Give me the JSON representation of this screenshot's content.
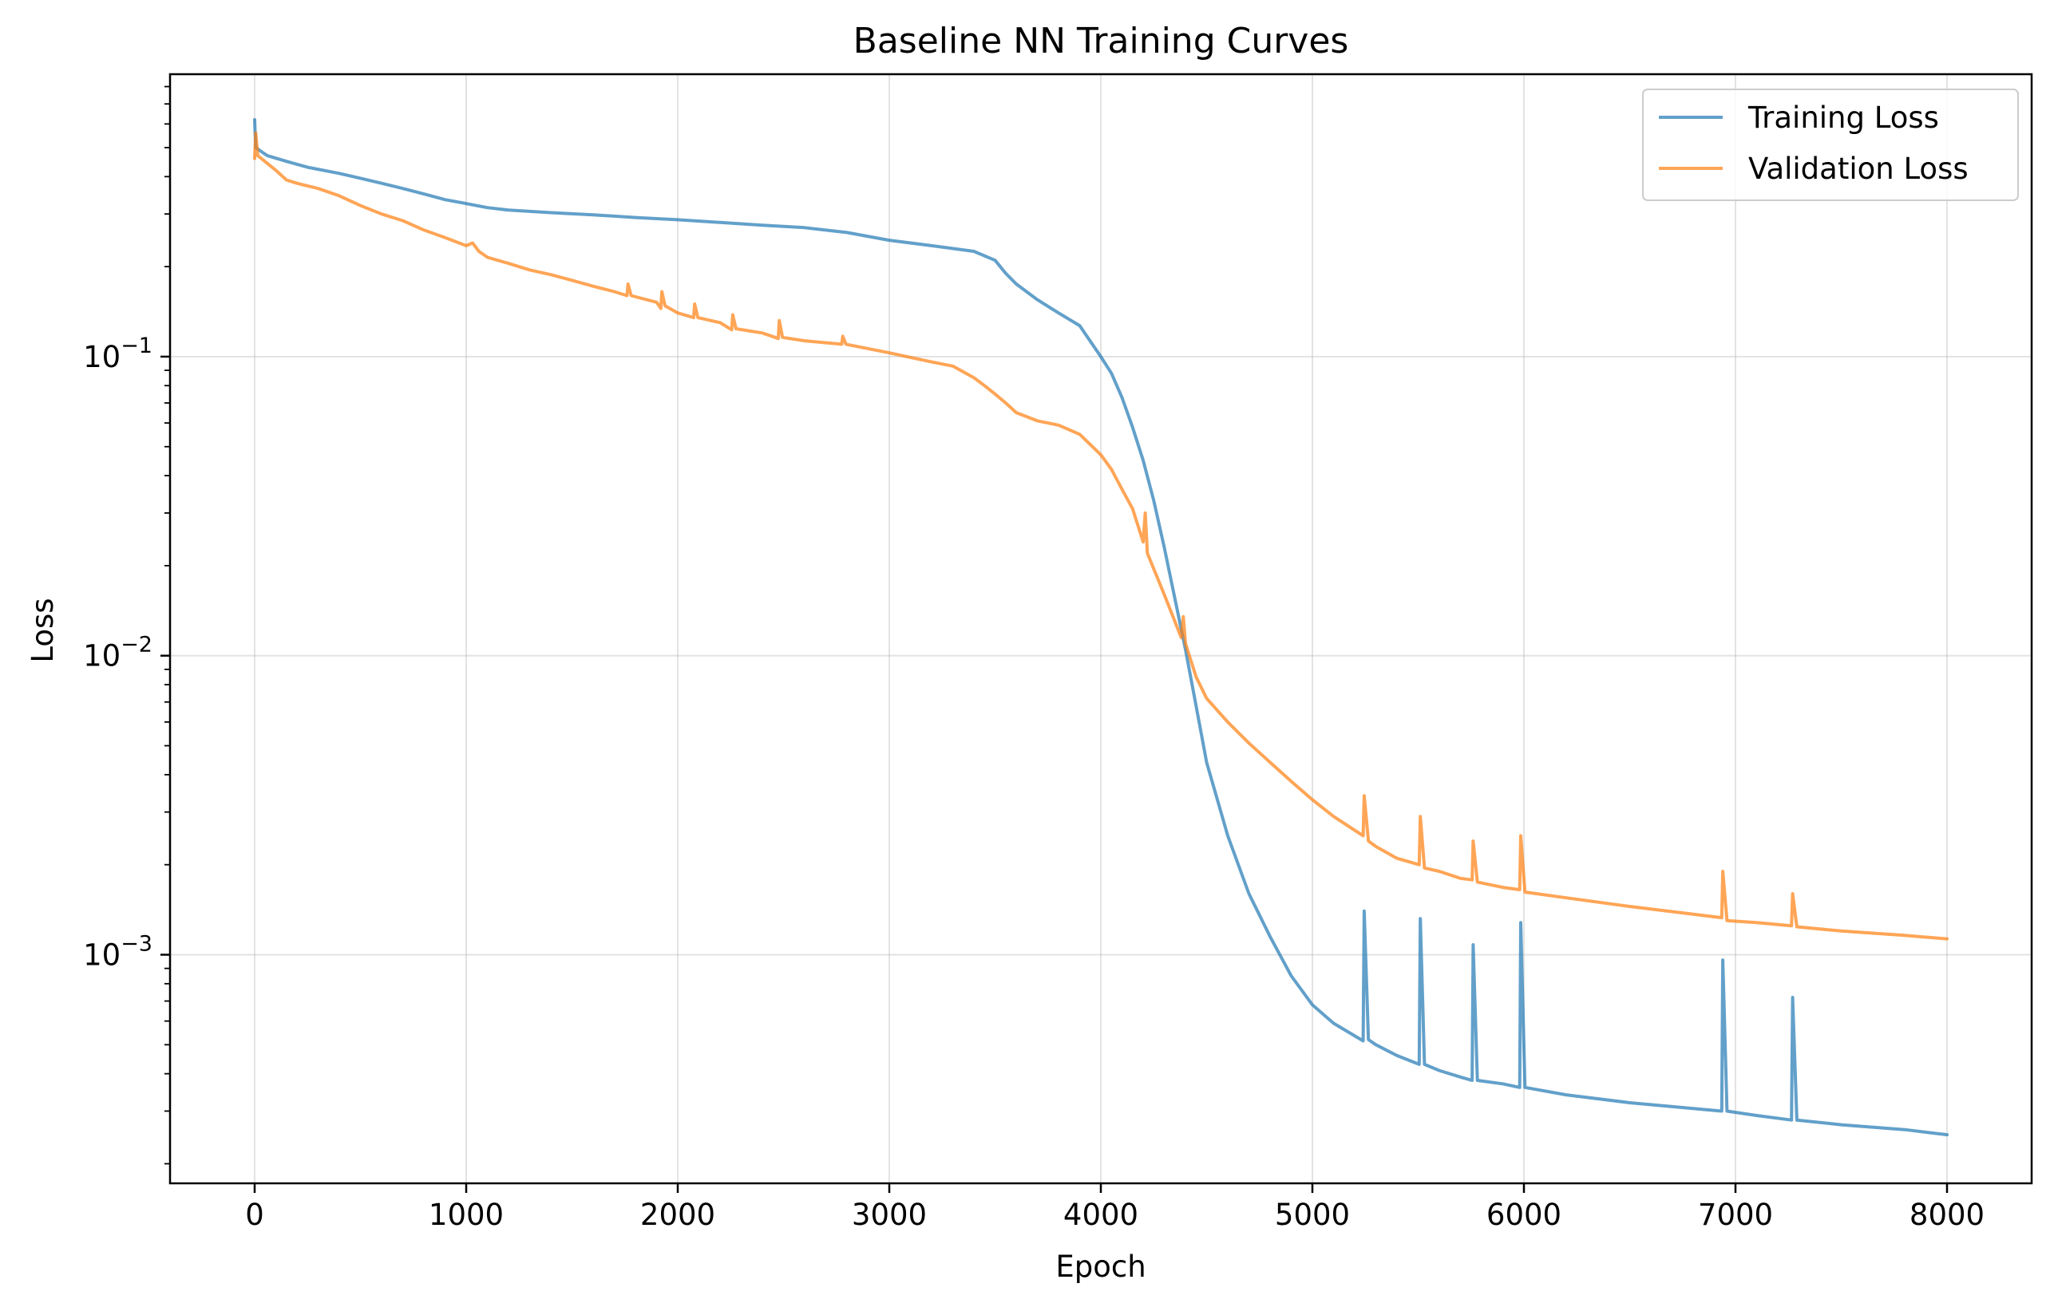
{
  "chart_data": {
    "type": "line",
    "title": "Baseline NN Training Curves",
    "xlabel": "Epoch",
    "ylabel": "Loss",
    "yscale": "log",
    "xlim": [
      -400,
      8400
    ],
    "ylim": [
      0.000172,
      0.88
    ],
    "xticks": [
      0,
      1000,
      2000,
      3000,
      4000,
      5000,
      6000,
      7000,
      8000
    ],
    "xtick_labels": [
      "0",
      "1000",
      "2000",
      "3000",
      "4000",
      "5000",
      "6000",
      "7000",
      "8000"
    ],
    "yticks": [
      0.001,
      0.01,
      0.1
    ],
    "ytick_labels": [
      {
        "base": "10",
        "exp": "−3"
      },
      {
        "base": "10",
        "exp": "−2"
      },
      {
        "base": "10",
        "exp": "−1"
      }
    ],
    "grid": true,
    "legend_position": "upper right",
    "series": [
      {
        "name": "Training Loss",
        "color": "#1f77b4",
        "opacity": 0.7,
        "points": [
          [
            0,
            0.62
          ],
          [
            5,
            0.5
          ],
          [
            60,
            0.47
          ],
          [
            150,
            0.45
          ],
          [
            250,
            0.43
          ],
          [
            400,
            0.41
          ],
          [
            500,
            0.395
          ],
          [
            600,
            0.38
          ],
          [
            700,
            0.365
          ],
          [
            800,
            0.35
          ],
          [
            900,
            0.335
          ],
          [
            1000,
            0.325
          ],
          [
            1100,
            0.315
          ],
          [
            1200,
            0.309
          ],
          [
            1400,
            0.303
          ],
          [
            1600,
            0.298
          ],
          [
            1800,
            0.292
          ],
          [
            2000,
            0.287
          ],
          [
            2200,
            0.281
          ],
          [
            2400,
            0.275
          ],
          [
            2600,
            0.27
          ],
          [
            2800,
            0.26
          ],
          [
            3000,
            0.245
          ],
          [
            3200,
            0.235
          ],
          [
            3400,
            0.225
          ],
          [
            3500,
            0.21
          ],
          [
            3550,
            0.19
          ],
          [
            3600,
            0.175
          ],
          [
            3700,
            0.155
          ],
          [
            3800,
            0.14
          ],
          [
            3900,
            0.127
          ],
          [
            4000,
            0.1
          ],
          [
            4050,
            0.088
          ],
          [
            4100,
            0.073
          ],
          [
            4150,
            0.058
          ],
          [
            4200,
            0.045
          ],
          [
            4250,
            0.033
          ],
          [
            4300,
            0.023
          ],
          [
            4350,
            0.0155
          ],
          [
            4400,
            0.0105
          ],
          [
            4450,
            0.0068
          ],
          [
            4500,
            0.0044
          ],
          [
            4600,
            0.0025
          ],
          [
            4700,
            0.0016
          ],
          [
            4800,
            0.00115
          ],
          [
            4900,
            0.00085
          ],
          [
            5000,
            0.00068
          ],
          [
            5100,
            0.00059
          ],
          [
            5240,
            0.000515
          ],
          [
            5245,
            0.0014
          ],
          [
            5265,
            0.00052
          ],
          [
            5300,
            0.0005
          ],
          [
            5400,
            0.00046
          ],
          [
            5505,
            0.00043
          ],
          [
            5510,
            0.00132
          ],
          [
            5530,
            0.00043
          ],
          [
            5600,
            0.00041
          ],
          [
            5700,
            0.00039
          ],
          [
            5755,
            0.00038
          ],
          [
            5760,
            0.00108
          ],
          [
            5780,
            0.00038
          ],
          [
            5900,
            0.00037
          ],
          [
            5980,
            0.00036
          ],
          [
            5985,
            0.00128
          ],
          [
            6005,
            0.00036
          ],
          [
            6200,
            0.00034
          ],
          [
            6500,
            0.00032
          ],
          [
            6935,
            0.0003
          ],
          [
            6940,
            0.00096
          ],
          [
            6960,
            0.0003
          ],
          [
            7100,
            0.00029
          ],
          [
            7265,
            0.00028
          ],
          [
            7270,
            0.00072
          ],
          [
            7290,
            0.00028
          ],
          [
            7500,
            0.00027
          ],
          [
            7800,
            0.00026
          ],
          [
            8000,
            0.00025
          ]
        ]
      },
      {
        "name": "Validation Loss",
        "color": "#ff7f0e",
        "opacity": 0.7,
        "points": [
          [
            0,
            0.46
          ],
          [
            5,
            0.56
          ],
          [
            15,
            0.47
          ],
          [
            100,
            0.42
          ],
          [
            150,
            0.39
          ],
          [
            200,
            0.38
          ],
          [
            300,
            0.365
          ],
          [
            400,
            0.345
          ],
          [
            500,
            0.32
          ],
          [
            600,
            0.3
          ],
          [
            700,
            0.285
          ],
          [
            800,
            0.265
          ],
          [
            900,
            0.25
          ],
          [
            1000,
            0.235
          ],
          [
            1030,
            0.24
          ],
          [
            1060,
            0.225
          ],
          [
            1100,
            0.215
          ],
          [
            1200,
            0.205
          ],
          [
            1300,
            0.195
          ],
          [
            1400,
            0.188
          ],
          [
            1500,
            0.18
          ],
          [
            1600,
            0.172
          ],
          [
            1700,
            0.165
          ],
          [
            1760,
            0.16
          ],
          [
            1765,
            0.175
          ],
          [
            1780,
            0.16
          ],
          [
            1900,
            0.152
          ],
          [
            1920,
            0.145
          ],
          [
            1925,
            0.165
          ],
          [
            1940,
            0.148
          ],
          [
            2000,
            0.14
          ],
          [
            2075,
            0.135
          ],
          [
            2080,
            0.15
          ],
          [
            2095,
            0.135
          ],
          [
            2200,
            0.13
          ],
          [
            2255,
            0.123
          ],
          [
            2260,
            0.138
          ],
          [
            2275,
            0.124
          ],
          [
            2400,
            0.12
          ],
          [
            2475,
            0.115
          ],
          [
            2480,
            0.132
          ],
          [
            2495,
            0.116
          ],
          [
            2600,
            0.113
          ],
          [
            2775,
            0.11
          ],
          [
            2780,
            0.117
          ],
          [
            2795,
            0.11
          ],
          [
            3000,
            0.103
          ],
          [
            3200,
            0.096
          ],
          [
            3300,
            0.093
          ],
          [
            3400,
            0.085
          ],
          [
            3450,
            0.08
          ],
          [
            3500,
            0.075
          ],
          [
            3550,
            0.07
          ],
          [
            3600,
            0.065
          ],
          [
            3700,
            0.061
          ],
          [
            3800,
            0.059
          ],
          [
            3900,
            0.055
          ],
          [
            4000,
            0.047
          ],
          [
            4050,
            0.042
          ],
          [
            4100,
            0.036
          ],
          [
            4150,
            0.031
          ],
          [
            4200,
            0.024
          ],
          [
            4210,
            0.03
          ],
          [
            4220,
            0.022
          ],
          [
            4300,
            0.016
          ],
          [
            4380,
            0.0115
          ],
          [
            4390,
            0.0135
          ],
          [
            4400,
            0.011
          ],
          [
            4450,
            0.0085
          ],
          [
            4500,
            0.0072
          ],
          [
            4600,
            0.006
          ],
          [
            4700,
            0.0051
          ],
          [
            4800,
            0.0044
          ],
          [
            4900,
            0.0038
          ],
          [
            5000,
            0.0033
          ],
          [
            5100,
            0.0029
          ],
          [
            5240,
            0.0025
          ],
          [
            5245,
            0.0034
          ],
          [
            5265,
            0.0024
          ],
          [
            5300,
            0.0023
          ],
          [
            5400,
            0.0021
          ],
          [
            5505,
            0.002
          ],
          [
            5510,
            0.0029
          ],
          [
            5530,
            0.00195
          ],
          [
            5600,
            0.0019
          ],
          [
            5700,
            0.0018
          ],
          [
            5755,
            0.00178
          ],
          [
            5760,
            0.0024
          ],
          [
            5780,
            0.00175
          ],
          [
            5900,
            0.00168
          ],
          [
            5980,
            0.00165
          ],
          [
            5985,
            0.0025
          ],
          [
            6005,
            0.00162
          ],
          [
            6200,
            0.00155
          ],
          [
            6500,
            0.00145
          ],
          [
            6935,
            0.00133
          ],
          [
            6940,
            0.0019
          ],
          [
            6960,
            0.0013
          ],
          [
            7100,
            0.00128
          ],
          [
            7265,
            0.00125
          ],
          [
            7270,
            0.0016
          ],
          [
            7290,
            0.00124
          ],
          [
            7500,
            0.0012
          ],
          [
            7800,
            0.00116
          ],
          [
            8000,
            0.00113
          ]
        ]
      }
    ]
  }
}
